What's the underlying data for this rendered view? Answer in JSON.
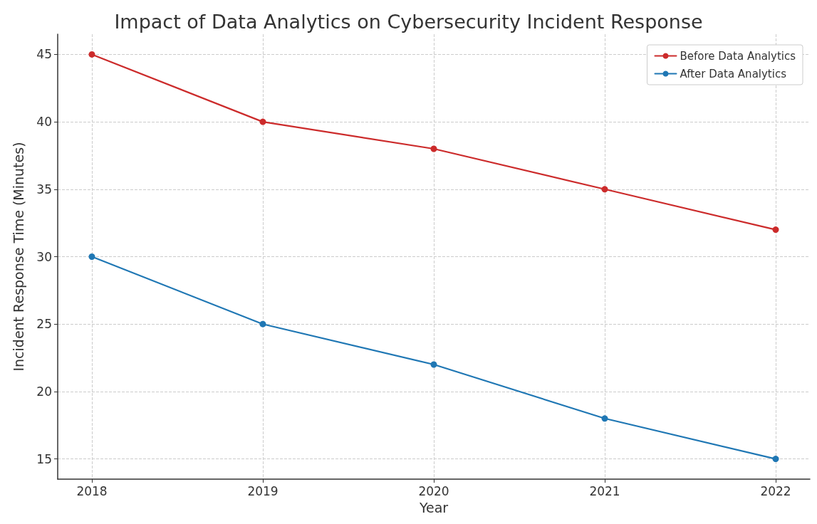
{
  "chart_data": {
    "type": "line",
    "title": "Impact of Data Analytics on Cybersecurity Incident Response",
    "xlabel": "Year",
    "ylabel": "Incident Response Time (Minutes)",
    "x": [
      2018,
      2019,
      2020,
      2021,
      2022
    ],
    "series": [
      {
        "name": "Before Data Analytics",
        "color": "#cc2b2b",
        "values": [
          45,
          40,
          38,
          35,
          32
        ]
      },
      {
        "name": "After Data Analytics",
        "color": "#1f77b4",
        "values": [
          30,
          25,
          22,
          18,
          15
        ]
      }
    ],
    "xlim": [
      2017.8,
      2022.2
    ],
    "xticks": [
      2018,
      2019,
      2020,
      2021,
      2022
    ],
    "ylim": [
      13.5,
      46.5
    ],
    "yticks": [
      15,
      20,
      25,
      30,
      35,
      40,
      45
    ],
    "grid": true,
    "legend": "top right",
    "marker": "circle",
    "line_style": "solid"
  }
}
